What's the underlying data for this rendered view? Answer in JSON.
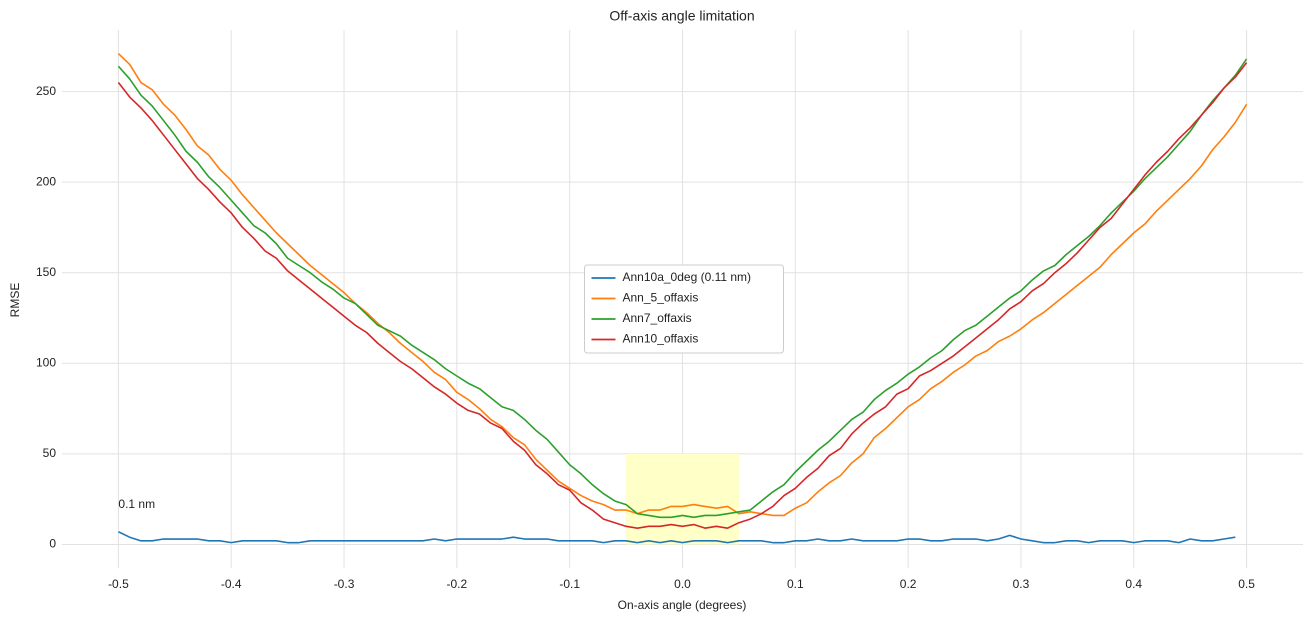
{
  "chart_data": {
    "type": "line",
    "title": "Off-axis angle limitation",
    "xlabel": "On-axis angle (degrees)",
    "ylabel": "RMSE",
    "xlim": [
      -0.55,
      0.55
    ],
    "ylim": [
      -13,
      284
    ],
    "xticks": [
      -0.5,
      -0.4,
      -0.3,
      -0.2,
      -0.1,
      {
        "value": 0,
        "label": "0.0"
      },
      0.1,
      0.2,
      0.3,
      0.4,
      0.5
    ],
    "yticks": [
      0,
      50,
      100,
      150,
      200,
      250
    ],
    "grid": true,
    "legend": "center",
    "annotation": {
      "text": "0.1 nm",
      "x": -0.5,
      "y": 22
    },
    "highlight": {
      "x": [
        -0.05,
        0.05
      ],
      "y": [
        0,
        50
      ],
      "color": "#ffffc8"
    },
    "x": [
      -0.5,
      -0.49,
      -0.48,
      -0.47,
      -0.46,
      -0.45,
      -0.44,
      -0.43,
      -0.42,
      -0.41,
      -0.4,
      -0.39,
      -0.38,
      -0.37,
      -0.36,
      -0.35,
      -0.34,
      -0.33,
      -0.32,
      -0.31,
      -0.3,
      -0.29,
      -0.28,
      -0.27,
      -0.26,
      -0.25,
      -0.24,
      -0.23,
      -0.22,
      -0.21,
      -0.2,
      -0.19,
      -0.18,
      -0.17,
      -0.16,
      -0.15,
      -0.14,
      -0.13,
      -0.12,
      -0.11,
      -0.1,
      -0.09,
      -0.08,
      -0.07,
      -0.06,
      -0.05,
      -0.04,
      -0.03,
      -0.02,
      -0.01,
      0,
      0.01,
      0.02,
      0.03,
      0.04,
      0.05,
      0.06,
      0.07,
      0.08,
      0.09,
      0.1,
      0.11,
      0.12,
      0.13,
      0.14,
      0.15,
      0.16,
      0.17,
      0.18,
      0.19,
      0.2,
      0.21,
      0.22,
      0.23,
      0.24,
      0.25,
      0.26,
      0.27,
      0.28,
      0.29,
      0.3,
      0.31,
      0.32,
      0.33,
      0.34,
      0.35,
      0.36,
      0.37,
      0.38,
      0.39,
      0.4,
      0.41,
      0.42,
      0.43,
      0.44,
      0.45,
      0.46,
      0.47,
      0.48,
      0.49,
      0.5
    ],
    "series": [
      {
        "name": "Ann10a_0deg (0.11 nm)",
        "color": "#1f77b4",
        "values": [
          7,
          4,
          2,
          2,
          3,
          3,
          3,
          3,
          2,
          2,
          1,
          2,
          2,
          2,
          2,
          1,
          1,
          2,
          2,
          2,
          2,
          2,
          2,
          2,
          2,
          2,
          2,
          2,
          3,
          2,
          3,
          3,
          3,
          3,
          3,
          4,
          3,
          3,
          3,
          2,
          2,
          2,
          2,
          1,
          2,
          2,
          1,
          2,
          1,
          2,
          1,
          2,
          2,
          2,
          1,
          2,
          2,
          2,
          1,
          1,
          2,
          2,
          3,
          2,
          2,
          3,
          2,
          2,
          2,
          2,
          3,
          3,
          2,
          2,
          3,
          3,
          3,
          2,
          3,
          5,
          3,
          2,
          1,
          1,
          2,
          2,
          1,
          2,
          2,
          2,
          1,
          2,
          2,
          2,
          1,
          3,
          2,
          2,
          3,
          4,
          null
        ]
      },
      {
        "name": "Ann_5_offaxis",
        "color": "#ff7f0e",
        "values": [
          271,
          265,
          255,
          251,
          243,
          237,
          229,
          220,
          215,
          207,
          201,
          193,
          186,
          179,
          172,
          166,
          160,
          154,
          149,
          144,
          139,
          133,
          128,
          122,
          117,
          111,
          106,
          101,
          95,
          91,
          84,
          80,
          75,
          69,
          65,
          59,
          55,
          47,
          41,
          35,
          31,
          27,
          24,
          22,
          19,
          19,
          17,
          19,
          19,
          21,
          21,
          22,
          21,
          20,
          21,
          17,
          18,
          17,
          16,
          16,
          20,
          23,
          29,
          34,
          38,
          45,
          50,
          59,
          64,
          70,
          76,
          80,
          86,
          90,
          95,
          99,
          104,
          107,
          112,
          115,
          119,
          124,
          128,
          133,
          138,
          143,
          148,
          153,
          160,
          166,
          172,
          177,
          184,
          190,
          196,
          202,
          209,
          218,
          225,
          233,
          243
        ]
      },
      {
        "name": "Ann7_offaxis",
        "color": "#2ca02c",
        "values": [
          264,
          257,
          248,
          242,
          234,
          226,
          217,
          211,
          203,
          197,
          190,
          183,
          176,
          172,
          166,
          158,
          154,
          150,
          145,
          141,
          136,
          133,
          127,
          121,
          118,
          115,
          110,
          106,
          102,
          97,
          93,
          89,
          86,
          81,
          76,
          74,
          69,
          63,
          58,
          51,
          44,
          39,
          33,
          28,
          24,
          22,
          17,
          16,
          15,
          15,
          16,
          15,
          16,
          16,
          17,
          18,
          19,
          24,
          29,
          33,
          40,
          46,
          52,
          57,
          63,
          69,
          73,
          80,
          85,
          89,
          94,
          98,
          103,
          107,
          113,
          118,
          121,
          126,
          131,
          136,
          140,
          146,
          151,
          154,
          160,
          165,
          170,
          176,
          183,
          189,
          195,
          202,
          208,
          214,
          221,
          228,
          237,
          245,
          252,
          259,
          268
        ]
      },
      {
        "name": "Ann10_offaxis",
        "color": "#d62728",
        "values": [
          255,
          247,
          241,
          234,
          226,
          218,
          210,
          202,
          196,
          189,
          183,
          175,
          169,
          162,
          158,
          151,
          146,
          141,
          136,
          131,
          126,
          121,
          117,
          111,
          106,
          101,
          97,
          92,
          87,
          83,
          78,
          74,
          72,
          67,
          64,
          57,
          52,
          44,
          39,
          33,
          30,
          23,
          19,
          14,
          12,
          10,
          9,
          10,
          10,
          11,
          10,
          11,
          9,
          10,
          9,
          12,
          14,
          17,
          21,
          27,
          31,
          37,
          42,
          49,
          53,
          61,
          67,
          72,
          76,
          83,
          86,
          93,
          96,
          100,
          104,
          109,
          114,
          119,
          124,
          130,
          134,
          140,
          144,
          150,
          155,
          161,
          168,
          175,
          180,
          188,
          196,
          204,
          211,
          217,
          224,
          230,
          237,
          244,
          252,
          258,
          266
        ]
      }
    ]
  }
}
